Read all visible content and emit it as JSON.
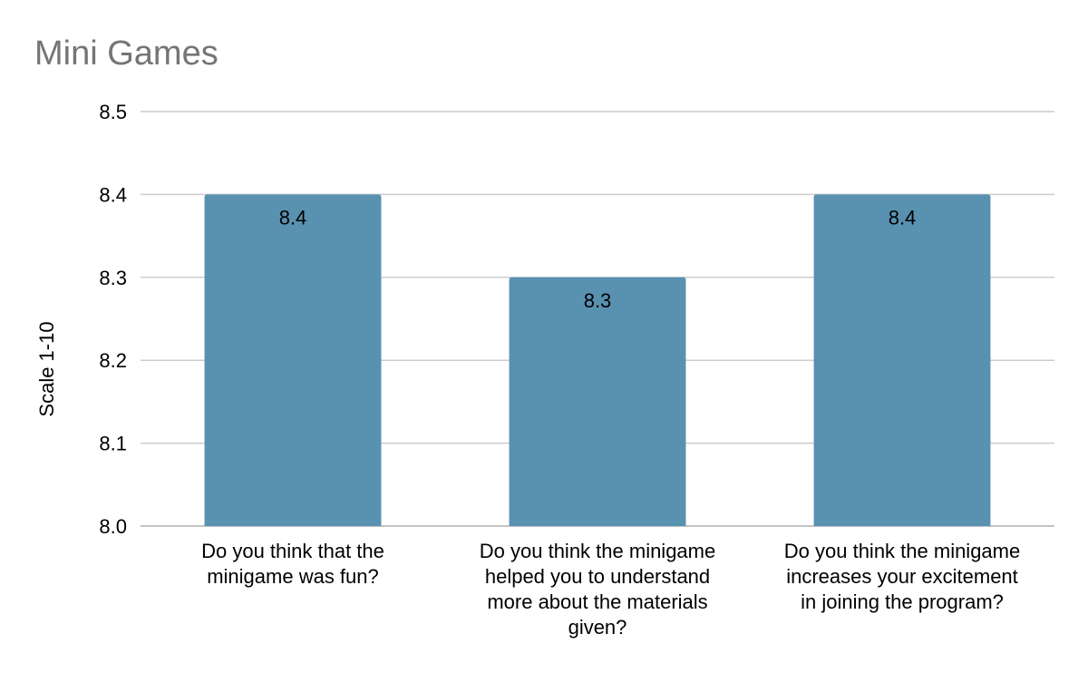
{
  "chart_data": {
    "type": "bar",
    "title": "Mini Games",
    "xlabel": "",
    "ylabel": "Scale 1-10",
    "categories": [
      "Do you think that the minigame was fun?",
      "Do you think the minigame helped you to understand more about the materials given?",
      "Do you think the minigame increases your excitement in joining the program?"
    ],
    "category_lines": [
      [
        "Do you think that the",
        "minigame was fun?"
      ],
      [
        "Do you think the minigame",
        "helped you to understand",
        "more about the materials",
        "given?"
      ],
      [
        "Do you think the minigame",
        "increases your excitement",
        "in joining the program?"
      ]
    ],
    "values": [
      8.4,
      8.3,
      8.4
    ],
    "data_labels": [
      "8.4",
      "8.3",
      "8.4"
    ],
    "ylim": [
      8.0,
      8.5
    ],
    "yticks": [
      "8.0",
      "8.1",
      "8.2",
      "8.3",
      "8.4",
      "8.5"
    ],
    "grid": true,
    "bar_color": "#5991b0",
    "grid_color": "#cccccc"
  }
}
